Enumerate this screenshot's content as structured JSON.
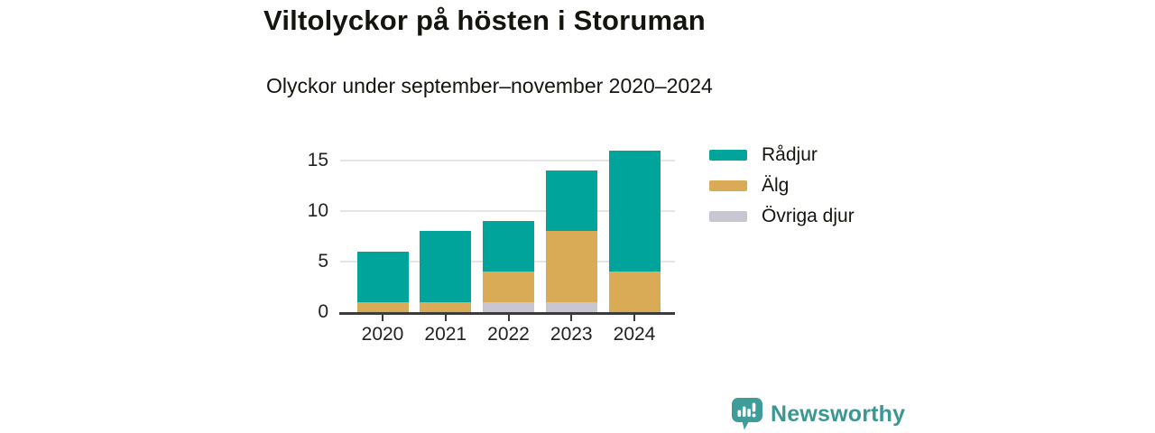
{
  "chart_data": {
    "type": "bar",
    "stacked": true,
    "title": "Viltolyckor på hösten i Storuman",
    "subtitle": "Olyckor under september–november 2020–2024",
    "categories": [
      "2020",
      "2021",
      "2022",
      "2023",
      "2024"
    ],
    "series": [
      {
        "name": "Rådjur",
        "color": "#00a49b",
        "values": [
          5,
          7,
          5,
          6,
          12
        ]
      },
      {
        "name": "Älg",
        "color": "#d9ab57",
        "values": [
          1,
          1,
          3,
          7,
          4
        ]
      },
      {
        "name": "Övriga djur",
        "color": "#c9c6d1",
        "values": [
          0,
          0,
          1,
          1,
          0
        ]
      }
    ],
    "totals": [
      6,
      8,
      9,
      14,
      16
    ],
    "xlabel": "",
    "ylabel": "",
    "ylim": [
      0,
      16
    ],
    "yticks": [
      0,
      5,
      10,
      15
    ],
    "grid": "horizontal-light",
    "legend_position": "right"
  },
  "footer": {
    "brand": "Newsworthy"
  },
  "icons": {
    "logo_badge": "bar-chart-exclamation-speech-bubble-icon"
  }
}
